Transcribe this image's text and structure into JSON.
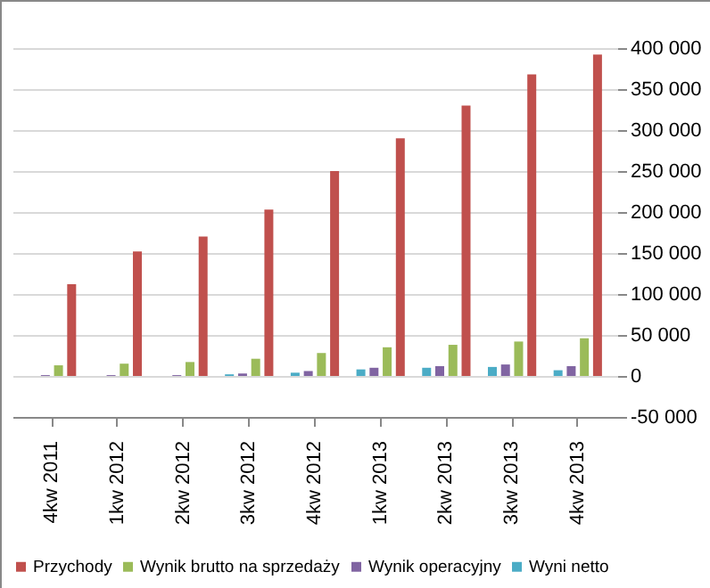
{
  "chart_data": {
    "type": "bar",
    "categories": [
      "4kw 2011",
      "1kw 2012",
      "2kw 2012",
      "3kw 2012",
      "4kw 2012",
      "1kw 2013",
      "2kw 2013",
      "3kw 2013",
      "4kw 2013"
    ],
    "series": [
      {
        "name": "Przychody",
        "color": "#c0504d",
        "values": [
          112000,
          152000,
          170000,
          203000,
          250000,
          290000,
          330000,
          368000,
          392000
        ]
      },
      {
        "name": "Wynik brutto na sprzedaży",
        "color": "#9bbb59",
        "values": [
          13000,
          15000,
          17000,
          21000,
          28000,
          35000,
          38000,
          42000,
          46000
        ]
      },
      {
        "name": "Wynik operacyjny",
        "color": "#8064a2",
        "values": [
          1000,
          1000,
          1000,
          3000,
          6000,
          10000,
          12000,
          14000,
          12000
        ]
      },
      {
        "name": "Wyni netto",
        "color": "#4bacc6",
        "values": [
          0,
          0,
          0,
          2000,
          4000,
          8000,
          10000,
          11000,
          7000
        ]
      }
    ],
    "ylim": [
      -50000,
      400000
    ],
    "yticks": [
      {
        "value": -50000,
        "label": "-50 000"
      },
      0,
      {
        "value": 50000,
        "label": "50 000"
      },
      {
        "value": 100000,
        "label": "100 000"
      },
      {
        "value": 150000,
        "label": "150 000"
      },
      {
        "value": 200000,
        "label": "200 000"
      },
      {
        "value": 250000,
        "label": "250 000"
      },
      {
        "value": 300000,
        "label": "300 000"
      },
      {
        "value": 350000,
        "label": "350 000"
      },
      {
        "value": 400000,
        "label": "400 000"
      }
    ],
    "grid": true,
    "legend": "bottom"
  }
}
